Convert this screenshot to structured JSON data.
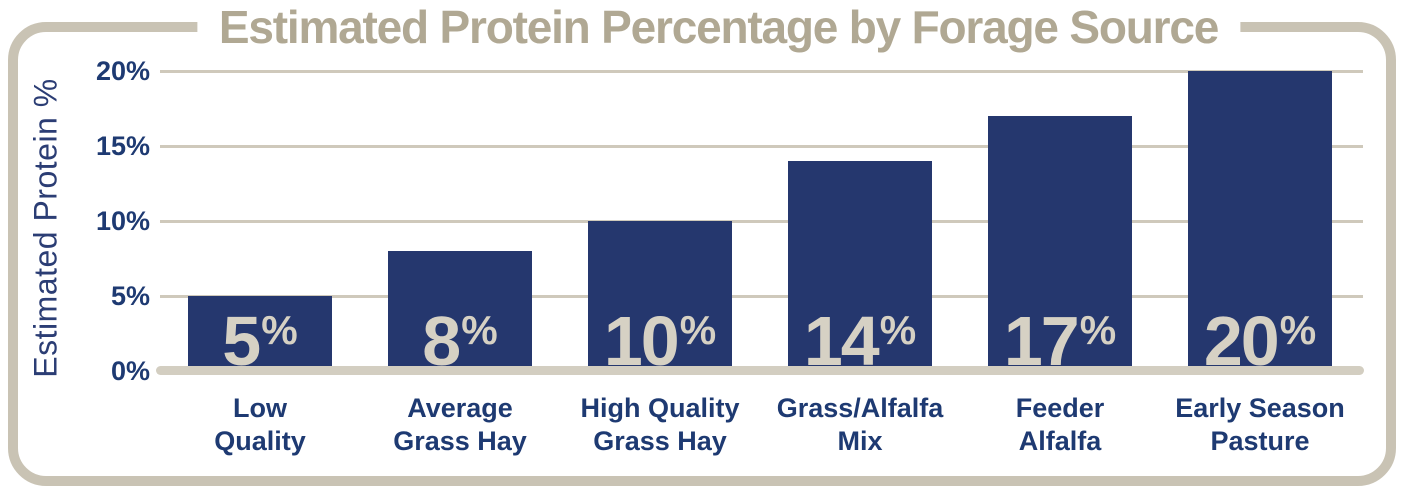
{
  "chart_data": {
    "type": "bar",
    "title": "Estimated Protein Percentage by Forage Source",
    "ylabel": "Estimated Protein %",
    "categories": [
      {
        "line1": "Low",
        "line2": "Quality"
      },
      {
        "line1": "Average",
        "line2": "Grass Hay"
      },
      {
        "line1": "High Quality",
        "line2": "Grass Hay"
      },
      {
        "line1": "Grass/Alfalfa",
        "line2": "Mix"
      },
      {
        "line1": "Feeder",
        "line2": "Alfalfa"
      },
      {
        "line1": "Early Season",
        "line2": "Pasture"
      }
    ],
    "values": [
      5,
      8,
      10,
      14,
      17,
      20
    ],
    "value_suffix": "%",
    "y_ticks": [
      {
        "label": "20%",
        "value": 20
      },
      {
        "label": "15%",
        "value": 15
      },
      {
        "label": "10%",
        "value": 10
      },
      {
        "label": "5%",
        "value": 5
      },
      {
        "label": "0%",
        "value": 0
      }
    ],
    "ylim": [
      0,
      20
    ],
    "grid": true,
    "legend": "none",
    "colors": {
      "bar_navy": "#25376e",
      "text_navy": "#1e3a72",
      "axis_blue": "#2b3d74",
      "title_tan": "#b0a893",
      "frame_tan": "#c9c3b4",
      "grid_tan": "#cfc9bb",
      "base_tan": "#d3cec1",
      "value_tan": "#d6d1c4"
    }
  }
}
